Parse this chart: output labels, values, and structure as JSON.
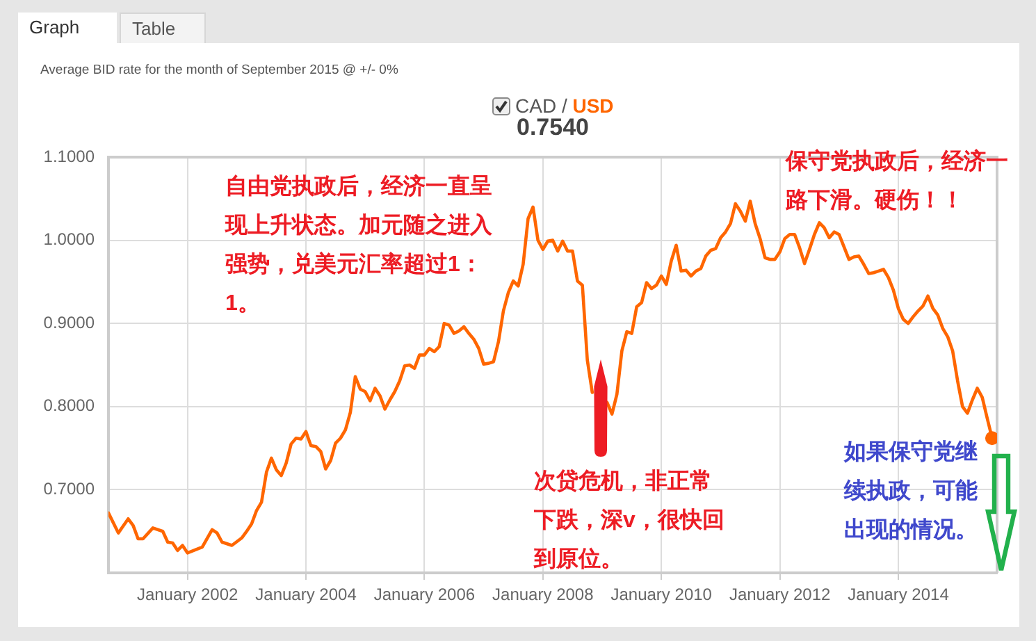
{
  "chart_data": {
    "type": "line",
    "title": "Average BID rate for the month of September 2015 @ +/- 0%",
    "annotations": [
      "Graph",
      "Table",
      "0.7540",
      "自由党执政后，经济一直呈现上升状态。加元随之进入强势，兑美元汇率超过1：1。",
      "保守党执政后，经济一路下滑。硬伤！！",
      "次贷危机，非正常下跌，深v，很快回到原位。",
      "如果保守党继续执政，可能出现的情况。"
    ],
    "x": [
      "2000-09",
      "2000-11",
      "2001-01",
      "2001-02",
      "2001-03",
      "2001-04",
      "2001-06",
      "2001-08",
      "2001-09",
      "2001-10",
      "2001-11",
      "2001-12",
      "2002-01",
      "2002-04",
      "2002-06",
      "2002-07",
      "2002-08",
      "2002-10",
      "2002-12",
      "2003-01",
      "2003-02",
      "2003-03",
      "2003-04",
      "2003-05",
      "2003-06",
      "2003-07",
      "2003-08",
      "2003-09",
      "2003-10",
      "2003-11",
      "2003-12",
      "2004-01",
      "2004-02",
      "2004-03",
      "2004-04",
      "2004-05",
      "2004-06",
      "2004-07",
      "2004-08",
      "2004-09",
      "2004-10",
      "2004-11",
      "2004-12",
      "2005-01",
      "2005-02",
      "2005-03",
      "2005-04",
      "2005-05",
      "2005-06",
      "2005-07",
      "2005-08",
      "2005-09",
      "2005-10",
      "2005-11",
      "2005-12",
      "2006-01",
      "2006-02",
      "2006-03",
      "2006-04",
      "2006-05",
      "2006-06",
      "2006-07",
      "2006-08",
      "2006-09",
      "2006-10",
      "2006-11",
      "2006-12",
      "2007-01",
      "2007-02",
      "2007-03",
      "2007-04",
      "2007-05",
      "2007-06",
      "2007-07",
      "2007-08",
      "2007-09",
      "2007-10",
      "2007-11",
      "2007-12",
      "2008-01",
      "2008-02",
      "2008-03",
      "2008-04",
      "2008-05",
      "2008-06",
      "2008-07",
      "2008-08",
      "2008-09",
      "2008-10",
      "2008-11",
      "2008-12",
      "2009-01",
      "2009-02",
      "2009-03",
      "2009-04",
      "2009-05",
      "2009-06",
      "2009-07",
      "2009-08",
      "2009-09",
      "2009-10",
      "2009-11",
      "2009-12",
      "2010-01",
      "2010-02",
      "2010-03",
      "2010-04",
      "2010-05",
      "2010-06",
      "2010-07",
      "2010-08",
      "2010-09",
      "2010-10",
      "2010-11",
      "2010-12",
      "2011-01",
      "2011-02",
      "2011-03",
      "2011-04",
      "2011-05",
      "2011-06",
      "2011-07",
      "2011-08",
      "2011-09",
      "2011-10",
      "2011-11",
      "2011-12",
      "2012-01",
      "2012-02",
      "2012-03",
      "2012-04",
      "2012-05",
      "2012-06",
      "2012-07",
      "2012-08",
      "2012-09",
      "2012-10",
      "2012-11",
      "2012-12",
      "2013-01",
      "2013-02",
      "2013-03",
      "2013-04",
      "2013-05",
      "2013-06",
      "2013-07",
      "2013-08",
      "2013-09",
      "2013-10",
      "2013-11",
      "2013-12",
      "2014-01",
      "2014-02",
      "2014-03",
      "2014-04",
      "2014-05",
      "2014-06",
      "2014-07",
      "2014-08",
      "2014-09",
      "2014-10",
      "2014-11",
      "2014-12",
      "2015-01",
      "2015-02",
      "2015-03",
      "2015-04",
      "2015-05",
      "2015-06",
      "2015-07",
      "2015-08"
    ],
    "series": [
      {
        "name": "CAD / USD",
        "color": "#ff6600",
        "values": [
          0.672,
          0.648,
          0.665,
          0.657,
          0.641,
          0.641,
          0.654,
          0.65,
          0.637,
          0.636,
          0.627,
          0.633,
          0.624,
          0.631,
          0.652,
          0.648,
          0.637,
          0.633,
          0.642,
          0.65,
          0.659,
          0.675,
          0.685,
          0.721,
          0.738,
          0.724,
          0.717,
          0.732,
          0.755,
          0.762,
          0.761,
          0.77,
          0.753,
          0.752,
          0.746,
          0.725,
          0.735,
          0.756,
          0.762,
          0.772,
          0.793,
          0.836,
          0.821,
          0.818,
          0.807,
          0.822,
          0.813,
          0.797,
          0.808,
          0.818,
          0.831,
          0.849,
          0.85,
          0.846,
          0.862,
          0.862,
          0.87,
          0.866,
          0.872,
          0.9,
          0.898,
          0.888,
          0.891,
          0.896,
          0.888,
          0.881,
          0.87,
          0.851,
          0.852,
          0.854,
          0.878,
          0.915,
          0.937,
          0.951,
          0.945,
          0.971,
          1.026,
          1.04,
          1.0,
          0.989,
          0.999,
          1.0,
          0.987,
          0.999,
          0.987,
          0.987,
          0.951,
          0.946,
          0.856,
          0.817,
          null,
          null,
          0.805,
          0.791,
          0.815,
          0.867,
          0.89,
          0.888,
          0.92,
          0.925,
          0.949,
          0.942,
          0.946,
          0.957,
          0.947,
          0.975,
          0.994,
          0.963,
          0.964,
          0.957,
          0.963,
          0.966,
          0.981,
          0.988,
          0.99,
          1.003,
          1.01,
          1.02,
          1.044,
          1.035,
          1.023,
          1.047,
          1.02,
          1.002,
          0.979,
          0.977,
          0.977,
          0.986,
          1.002,
          1.007,
          1.007,
          0.991,
          0.972,
          0.989,
          1.007,
          1.021,
          1.015,
          1.003,
          1.01,
          1.007,
          0.992,
          0.977,
          0.98,
          0.981,
          0.971,
          0.96,
          0.961,
          0.963,
          0.965,
          0.955,
          0.94,
          0.918,
          0.905,
          0.9,
          0.908,
          0.915,
          0.921,
          0.933,
          0.918,
          0.91,
          0.894,
          0.884,
          0.867,
          0.831,
          0.8,
          0.792,
          0.808,
          0.822,
          0.811,
          0.786,
          0.762
        ]
      },
      {
        "type": "scatter",
        "color": "#ff6600",
        "x": [
          "2015-08"
        ],
        "values": [
          0.762
        ]
      }
    ],
    "xlim": [
      "2000-09",
      "2015-09"
    ],
    "xticks": [
      {
        "value": "2002-01",
        "label": "January 2002"
      },
      {
        "value": "2004-01",
        "label": "January 2004"
      },
      {
        "value": "2006-01",
        "label": "January 2006"
      },
      {
        "value": "2008-01",
        "label": "January 2008"
      },
      {
        "value": "2010-01",
        "label": "January 2010"
      },
      {
        "value": "2012-01",
        "label": "January 2012"
      },
      {
        "value": "2014-01",
        "label": "January 2014"
      }
    ],
    "ylim": [
      0.6,
      1.1
    ],
    "yticks": [
      {
        "value": 0.7,
        "label": "0.7000"
      },
      {
        "value": 0.8,
        "label": "0.8000"
      },
      {
        "value": 0.9,
        "label": "0.9000"
      },
      {
        "value": 1.0,
        "label": "1.0000"
      },
      {
        "value": 1.1,
        "label": "1.1000"
      }
    ],
    "grid": true,
    "legend": "top"
  }
}
